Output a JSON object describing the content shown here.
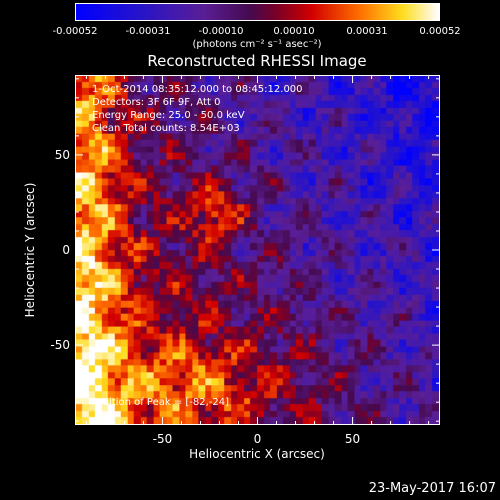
{
  "chart_data": {
    "type": "heatmap",
    "title": "Reconstructed RHESSI Image",
    "xlabel": "Heliocentric X (arcsec)",
    "ylabel": "Heliocentric Y (arcsec)",
    "xlim": [
      -96,
      96
    ],
    "ylim": [
      -92,
      92
    ],
    "x_ticks": [
      -50,
      0,
      50
    ],
    "y_ticks": [
      50,
      0,
      -50
    ],
    "colorbar": {
      "ticks": [
        "-0.00052",
        "-0.00031",
        "-0.00010",
        "0.00010",
        "0.00031",
        "0.00052"
      ],
      "range": [
        -0.00052,
        0.00052
      ],
      "units_text": "(photons cm⁻² s⁻¹ asec⁻²)"
    },
    "annotations": [
      "1-Oct-2014 08:35:12.000 to 08:45:12.000",
      "Detectors: 3F 6F 9F, Att 0",
      "Energy Range: 25.0 - 50.0 keV",
      "Clean    Total counts: 8.54E+03"
    ],
    "peak_label": "Position of Peak = [-82,-24]",
    "peak_position": [
      -82,
      -24
    ]
  },
  "footer": {
    "date": "23-May-2017 16:07"
  }
}
